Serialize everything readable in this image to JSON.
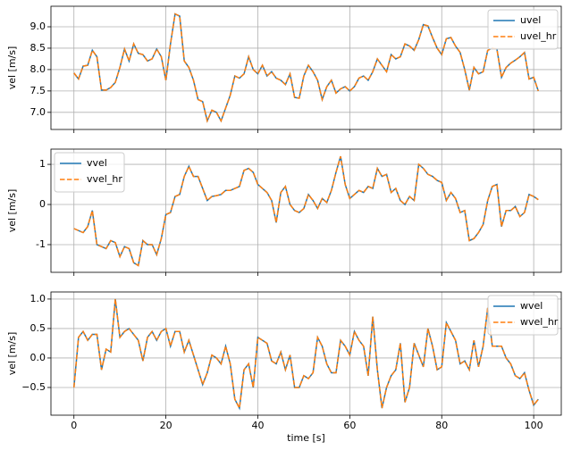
{
  "chart_data": [
    {
      "type": "line",
      "ylabel": "vel [m/s]",
      "legend": "upper right",
      "grid": true,
      "show_xticklabels": false,
      "x": [
        0,
        1,
        2,
        3,
        4,
        5,
        6,
        7,
        8,
        9,
        10,
        11,
        12,
        13,
        14,
        15,
        16,
        17,
        18,
        19,
        20,
        21,
        22,
        23,
        24,
        25,
        26,
        27,
        28,
        29,
        30,
        31,
        32,
        33,
        34,
        35,
        36,
        37,
        38,
        39,
        40,
        41,
        42,
        43,
        44,
        45,
        46,
        47,
        48,
        49,
        50,
        51,
        52,
        53,
        54,
        55,
        56,
        57,
        58,
        59,
        60,
        61,
        62,
        63,
        64,
        65,
        66,
        67,
        68,
        69,
        70,
        71,
        72,
        73,
        74,
        75,
        76,
        77,
        78,
        79,
        80,
        81,
        82,
        83,
        84,
        85,
        86,
        87,
        88,
        89,
        90,
        91,
        92,
        93,
        94,
        95,
        96,
        97,
        98,
        99,
        100,
        101
      ],
      "xlim": [
        -5,
        106
      ],
      "xticks": [
        0,
        20,
        40,
        60,
        80,
        100
      ],
      "ylim": [
        6.6,
        9.48
      ],
      "yticks": [
        {
          "value": 7,
          "label": "7.0"
        },
        {
          "value": 7.5,
          "label": "7.5"
        },
        {
          "value": 8,
          "label": "8.0"
        },
        {
          "value": 8.5,
          "label": "8.5"
        },
        {
          "value": 9,
          "label": "9.0"
        }
      ],
      "series": [
        {
          "name": "uvel",
          "color": "#1f77b4",
          "linestyle": "solid",
          "values": [
            7.92,
            7.78,
            8.08,
            8.1,
            8.45,
            8.3,
            7.52,
            7.52,
            7.58,
            7.7,
            8.05,
            8.48,
            8.2,
            8.6,
            8.38,
            8.35,
            8.2,
            8.25,
            8.48,
            8.3,
            7.75,
            8.6,
            9.3,
            9.25,
            8.2,
            8.05,
            7.75,
            7.3,
            7.25,
            6.8,
            7.05,
            7.0,
            6.8,
            7.1,
            7.4,
            7.85,
            7.8,
            7.9,
            8.3,
            8.0,
            7.9,
            8.1,
            7.85,
            7.95,
            7.8,
            7.75,
            7.65,
            7.9,
            7.35,
            7.33,
            7.85,
            8.1,
            7.95,
            7.75,
            7.3,
            7.6,
            7.75,
            7.45,
            7.55,
            7.6,
            7.5,
            7.6,
            7.8,
            7.85,
            7.75,
            7.95,
            8.25,
            8.1,
            7.95,
            8.35,
            8.25,
            8.3,
            8.6,
            8.55,
            8.45,
            8.7,
            9.05,
            9.02,
            8.75,
            8.5,
            8.35,
            8.72,
            8.75,
            8.55,
            8.4,
            8.0,
            7.52,
            8.05,
            7.9,
            7.95,
            8.45,
            8.5,
            8.48,
            7.82,
            8.05,
            8.15,
            8.22,
            8.3,
            8.4,
            7.78,
            7.82,
            7.5
          ]
        },
        {
          "name": "uvel_hr",
          "color": "#ff7f0e",
          "linestyle": "dashed",
          "values": [
            7.92,
            7.78,
            8.08,
            8.1,
            8.45,
            8.3,
            7.52,
            7.52,
            7.58,
            7.7,
            8.05,
            8.48,
            8.2,
            8.6,
            8.38,
            8.35,
            8.2,
            8.25,
            8.48,
            8.3,
            7.75,
            8.6,
            9.3,
            9.25,
            8.2,
            8.05,
            7.75,
            7.3,
            7.25,
            6.8,
            7.05,
            7.0,
            6.8,
            7.1,
            7.4,
            7.85,
            7.8,
            7.9,
            8.3,
            8.0,
            7.9,
            8.1,
            7.85,
            7.95,
            7.8,
            7.75,
            7.65,
            7.9,
            7.35,
            7.33,
            7.85,
            8.1,
            7.95,
            7.75,
            7.3,
            7.6,
            7.75,
            7.45,
            7.55,
            7.6,
            7.5,
            7.6,
            7.8,
            7.85,
            7.75,
            7.95,
            8.25,
            8.1,
            7.95,
            8.35,
            8.25,
            8.3,
            8.6,
            8.55,
            8.45,
            8.7,
            9.05,
            9.02,
            8.75,
            8.5,
            8.35,
            8.72,
            8.75,
            8.55,
            8.4,
            8.0,
            7.52,
            8.05,
            7.9,
            7.95,
            8.45,
            8.5,
            8.48,
            7.82,
            8.05,
            8.15,
            8.22,
            8.3,
            8.4,
            7.78,
            7.82,
            7.5
          ]
        }
      ]
    },
    {
      "type": "line",
      "ylabel": "vel [m/s]",
      "legend": "upper left",
      "grid": true,
      "show_xticklabels": false,
      "x": [
        0,
        1,
        2,
        3,
        4,
        5,
        6,
        7,
        8,
        9,
        10,
        11,
        12,
        13,
        14,
        15,
        16,
        17,
        18,
        19,
        20,
        21,
        22,
        23,
        24,
        25,
        26,
        27,
        28,
        29,
        30,
        31,
        32,
        33,
        34,
        35,
        36,
        37,
        38,
        39,
        40,
        41,
        42,
        43,
        44,
        45,
        46,
        47,
        48,
        49,
        50,
        51,
        52,
        53,
        54,
        55,
        56,
        57,
        58,
        59,
        60,
        61,
        62,
        63,
        64,
        65,
        66,
        67,
        68,
        69,
        70,
        71,
        72,
        73,
        74,
        75,
        76,
        77,
        78,
        79,
        80,
        81,
        82,
        83,
        84,
        85,
        86,
        87,
        88,
        89,
        90,
        91,
        92,
        93,
        94,
        95,
        96,
        97,
        98,
        99,
        100,
        101
      ],
      "xlim": [
        -5,
        106
      ],
      "xticks": [
        0,
        20,
        40,
        60,
        80,
        100
      ],
      "ylim": [
        -1.69,
        1.38
      ],
      "yticks": [
        -1,
        0,
        1
      ],
      "series": [
        {
          "name": "vvel",
          "color": "#1f77b4",
          "linestyle": "solid",
          "values": [
            -0.6,
            -0.65,
            -0.7,
            -0.55,
            -0.15,
            -1.0,
            -1.05,
            -1.1,
            -0.9,
            -0.95,
            -1.3,
            -1.05,
            -1.1,
            -1.45,
            -1.52,
            -0.9,
            -1.0,
            -1.0,
            -1.25,
            -0.85,
            -0.25,
            -0.2,
            0.2,
            0.25,
            0.7,
            0.95,
            0.7,
            0.7,
            0.4,
            0.1,
            0.2,
            0.22,
            0.25,
            0.35,
            0.35,
            0.4,
            0.45,
            0.85,
            0.9,
            0.8,
            0.5,
            0.4,
            0.3,
            0.1,
            -0.45,
            0.3,
            0.45,
            0.0,
            -0.15,
            -0.2,
            -0.1,
            0.25,
            0.1,
            -0.1,
            0.15,
            0.05,
            0.35,
            0.8,
            1.2,
            0.5,
            0.15,
            0.25,
            0.35,
            0.3,
            0.45,
            0.4,
            0.9,
            0.7,
            0.75,
            0.3,
            0.4,
            0.1,
            0.0,
            0.2,
            0.1,
            1.0,
            0.9,
            0.75,
            0.7,
            0.6,
            0.55,
            0.1,
            0.3,
            0.15,
            -0.2,
            -0.15,
            -0.9,
            -0.85,
            -0.7,
            -0.5,
            0.1,
            0.45,
            0.5,
            -0.55,
            -0.15,
            -0.15,
            -0.05,
            -0.3,
            -0.2,
            0.25,
            0.2,
            0.12
          ]
        },
        {
          "name": "vvel_hr",
          "color": "#ff7f0e",
          "linestyle": "dashed",
          "values": [
            -0.6,
            -0.65,
            -0.7,
            -0.55,
            -0.15,
            -1.0,
            -1.05,
            -1.1,
            -0.9,
            -0.95,
            -1.3,
            -1.05,
            -1.1,
            -1.45,
            -1.52,
            -0.9,
            -1.0,
            -1.0,
            -1.25,
            -0.85,
            -0.25,
            -0.2,
            0.2,
            0.25,
            0.7,
            0.95,
            0.7,
            0.7,
            0.4,
            0.1,
            0.2,
            0.22,
            0.25,
            0.35,
            0.35,
            0.4,
            0.45,
            0.85,
            0.9,
            0.8,
            0.5,
            0.4,
            0.3,
            0.1,
            -0.45,
            0.3,
            0.45,
            0.0,
            -0.15,
            -0.2,
            -0.1,
            0.25,
            0.1,
            -0.1,
            0.15,
            0.05,
            0.35,
            0.8,
            1.2,
            0.5,
            0.15,
            0.25,
            0.35,
            0.3,
            0.45,
            0.4,
            0.9,
            0.7,
            0.75,
            0.3,
            0.4,
            0.1,
            0.0,
            0.2,
            0.1,
            1.0,
            0.9,
            0.75,
            0.7,
            0.6,
            0.55,
            0.1,
            0.3,
            0.15,
            -0.2,
            -0.15,
            -0.9,
            -0.85,
            -0.7,
            -0.5,
            0.1,
            0.45,
            0.5,
            -0.55,
            -0.15,
            -0.15,
            -0.05,
            -0.3,
            -0.2,
            0.25,
            0.2,
            0.12
          ]
        }
      ]
    },
    {
      "type": "line",
      "ylabel": "vel [m/s]",
      "xlabel": "time [s]",
      "legend": "upper right",
      "grid": true,
      "show_xticklabels": true,
      "x": [
        0,
        1,
        2,
        3,
        4,
        5,
        6,
        7,
        8,
        9,
        10,
        11,
        12,
        13,
        14,
        15,
        16,
        17,
        18,
        19,
        20,
        21,
        22,
        23,
        24,
        25,
        26,
        27,
        28,
        29,
        30,
        31,
        32,
        33,
        34,
        35,
        36,
        37,
        38,
        39,
        40,
        41,
        42,
        43,
        44,
        45,
        46,
        47,
        48,
        49,
        50,
        51,
        52,
        53,
        54,
        55,
        56,
        57,
        58,
        59,
        60,
        61,
        62,
        63,
        64,
        65,
        66,
        67,
        68,
        69,
        70,
        71,
        72,
        73,
        74,
        75,
        76,
        77,
        78,
        79,
        80,
        81,
        82,
        83,
        84,
        85,
        86,
        87,
        88,
        89,
        90,
        91,
        92,
        93,
        94,
        95,
        96,
        97,
        98,
        99,
        100,
        101
      ],
      "xlim": [
        -5,
        106
      ],
      "xticks": [
        0,
        20,
        40,
        60,
        80,
        100
      ],
      "ylim": [
        -0.97,
        1.12
      ],
      "yticks": [
        {
          "value": -0.5,
          "label": "−0.5"
        },
        {
          "value": 0,
          "label": "0.0"
        },
        {
          "value": 0.5,
          "label": "0.5"
        },
        {
          "value": 1,
          "label": "1.0"
        }
      ],
      "series": [
        {
          "name": "wvel",
          "color": "#1f77b4",
          "linestyle": "solid",
          "values": [
            -0.5,
            0.35,
            0.45,
            0.3,
            0.4,
            0.4,
            -0.2,
            0.15,
            0.1,
            1.0,
            0.35,
            0.45,
            0.5,
            0.4,
            0.3,
            -0.05,
            0.35,
            0.45,
            0.3,
            0.45,
            0.5,
            0.2,
            0.45,
            0.45,
            0.1,
            0.3,
            0.05,
            -0.2,
            -0.45,
            -0.25,
            0.05,
            0.0,
            -0.1,
            0.2,
            -0.1,
            -0.7,
            -0.85,
            -0.2,
            -0.1,
            -0.5,
            0.35,
            0.3,
            0.25,
            -0.05,
            -0.1,
            0.1,
            -0.2,
            0.05,
            -0.5,
            -0.5,
            -0.3,
            -0.35,
            -0.25,
            0.35,
            0.2,
            -0.1,
            -0.25,
            -0.25,
            0.3,
            0.2,
            0.05,
            0.45,
            0.3,
            0.2,
            -0.3,
            0.7,
            -0.2,
            -0.85,
            -0.5,
            -0.3,
            -0.2,
            0.25,
            -0.75,
            -0.5,
            0.25,
            0.05,
            -0.15,
            0.5,
            0.2,
            -0.2,
            -0.15,
            0.6,
            0.45,
            0.3,
            -0.1,
            -0.05,
            -0.2,
            0.3,
            -0.15,
            0.2,
            0.85,
            0.2,
            0.2,
            0.2,
            0.0,
            -0.1,
            -0.3,
            -0.35,
            -0.25,
            -0.55,
            -0.8,
            -0.7
          ]
        },
        {
          "name": "wvel_hr",
          "color": "#ff7f0e",
          "linestyle": "dashed",
          "values": [
            -0.5,
            0.35,
            0.45,
            0.3,
            0.4,
            0.4,
            -0.2,
            0.15,
            0.1,
            1.0,
            0.35,
            0.45,
            0.5,
            0.4,
            0.3,
            -0.05,
            0.35,
            0.45,
            0.3,
            0.45,
            0.5,
            0.2,
            0.45,
            0.45,
            0.1,
            0.3,
            0.05,
            -0.2,
            -0.45,
            -0.25,
            0.05,
            0.0,
            -0.1,
            0.2,
            -0.1,
            -0.7,
            -0.85,
            -0.2,
            -0.1,
            -0.5,
            0.35,
            0.3,
            0.25,
            -0.05,
            -0.1,
            0.1,
            -0.2,
            0.05,
            -0.5,
            -0.5,
            -0.3,
            -0.35,
            -0.25,
            0.35,
            0.2,
            -0.1,
            -0.25,
            -0.25,
            0.3,
            0.2,
            0.05,
            0.45,
            0.3,
            0.2,
            -0.3,
            0.7,
            -0.2,
            -0.85,
            -0.5,
            -0.3,
            -0.2,
            0.25,
            -0.75,
            -0.5,
            0.25,
            0.05,
            -0.15,
            0.5,
            0.2,
            -0.2,
            -0.15,
            0.6,
            0.45,
            0.3,
            -0.1,
            -0.05,
            -0.2,
            0.3,
            -0.15,
            0.2,
            0.85,
            0.2,
            0.2,
            0.2,
            0.0,
            -0.1,
            -0.3,
            -0.35,
            -0.25,
            -0.55,
            -0.8,
            -0.7
          ]
        }
      ]
    }
  ]
}
